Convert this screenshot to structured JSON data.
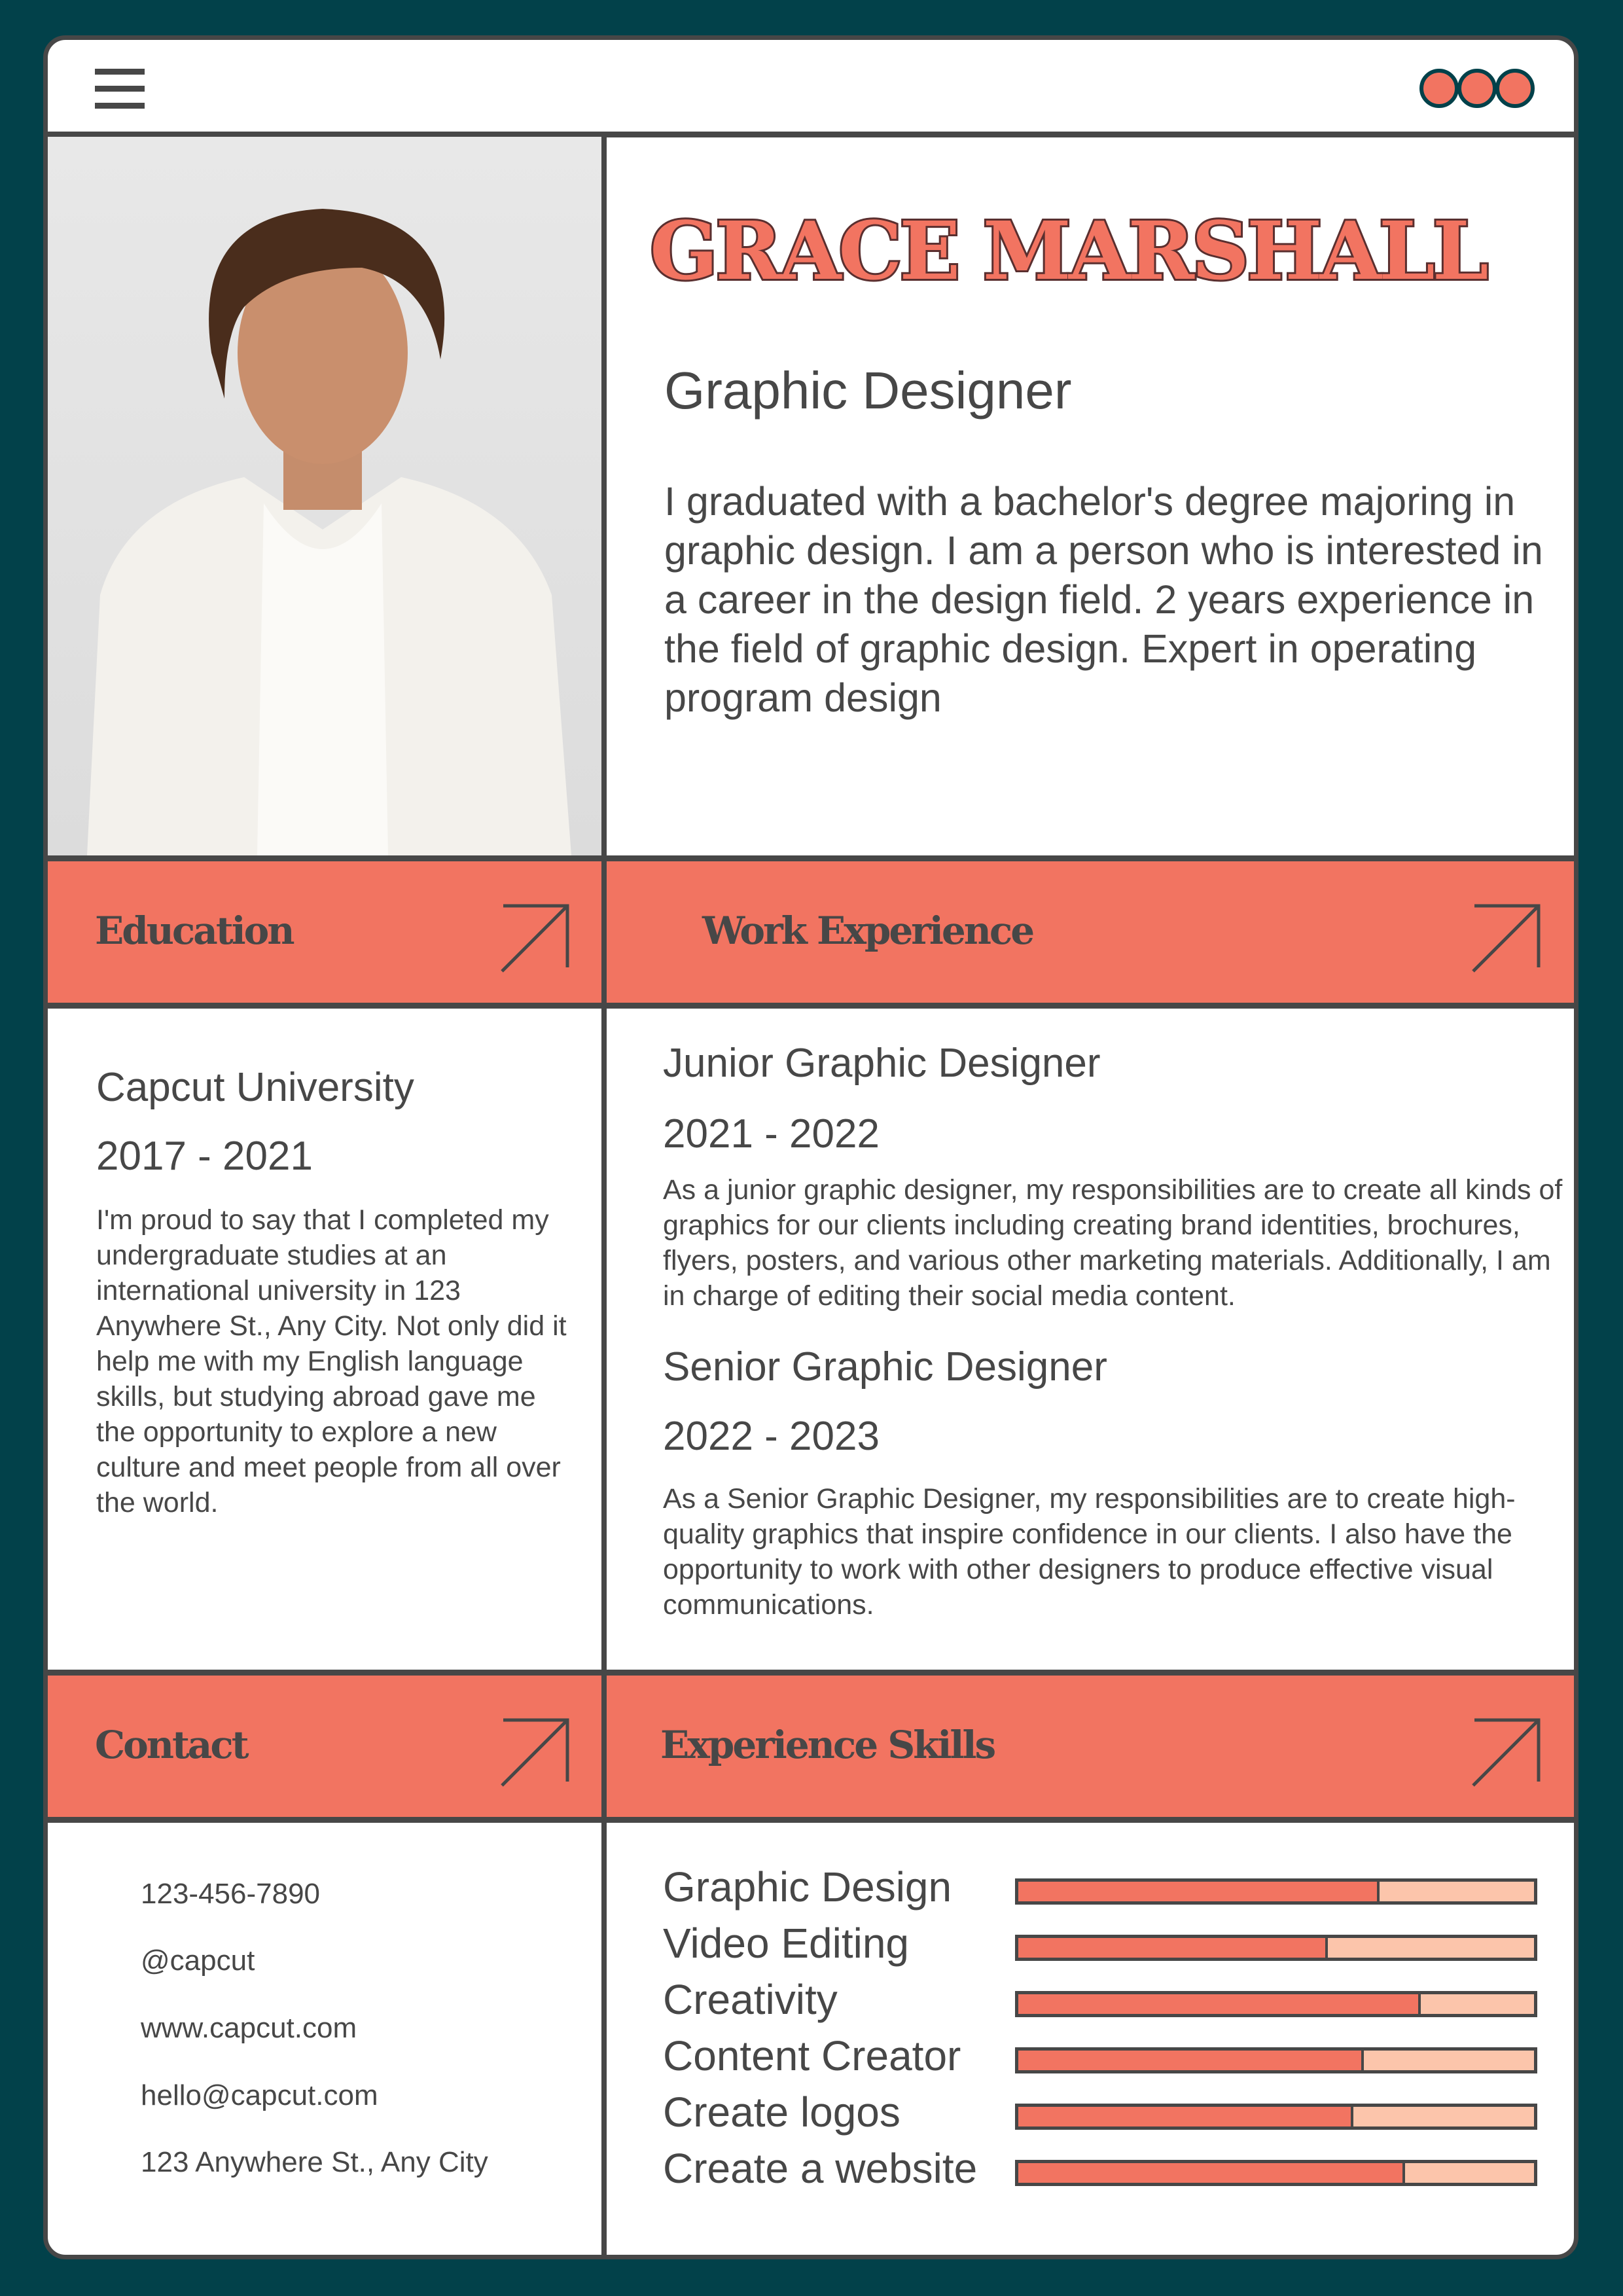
{
  "header": {
    "menu_icon": "hamburger-menu-icon",
    "dots_icon": "three-dots-icon"
  },
  "profile": {
    "name": "GRACE MARSHALL",
    "role": "Graphic Designer",
    "summary": "I graduated with a bachelor's degree majoring in graphic design. I am a person who is interested in a career in the design field. 2 years experience in the field of graphic design. Expert in operating program design"
  },
  "education": {
    "heading": "Education",
    "school": "Capcut University",
    "years": "2017 - 2021",
    "description": "I'm proud to say that I completed my undergraduate studies at an international university in 123 Anywhere St., Any City. Not only did it help me with my English language skills, but studying abroad gave me the opportunity to explore a new culture and meet people from all over the world."
  },
  "work": {
    "heading": "Work Experience",
    "jobs": [
      {
        "title": "Junior Graphic Designer",
        "years": "2021 - 2022",
        "description": "As a junior graphic designer, my responsibilities are to create all kinds of graphics for our clients including creating brand identities, brochures, flyers, posters, and various other marketing materials. Additionally, I am in charge of editing their social media content."
      },
      {
        "title": "Senior Graphic Designer",
        "years": "2022 - 2023",
        "description": "As a Senior Graphic Designer, my responsibilities are to create high-quality graphics that inspire confidence in our clients. I also have the opportunity to work with other designers to produce effective visual communications."
      }
    ]
  },
  "contact": {
    "heading": "Contact",
    "items": [
      "123-456-7890",
      "@capcut",
      "www.capcut.com",
      "hello@capcut.com",
      "123 Anywhere St., Any City"
    ]
  },
  "skills": {
    "heading": "Experience Skills",
    "items": [
      {
        "label": "Graphic Design",
        "level": 0.7
      },
      {
        "label": "Video Editing",
        "level": 0.6
      },
      {
        "label": "Creativity",
        "level": 0.78
      },
      {
        "label": "Content Creator",
        "level": 0.67
      },
      {
        "label": "Create logos",
        "level": 0.65
      },
      {
        "label": "Create a website",
        "level": 0.75
      }
    ]
  },
  "colors": {
    "background": "#02414a",
    "accent": "#f27461",
    "accent_light": "#fcc5ab",
    "ink": "#474747"
  }
}
